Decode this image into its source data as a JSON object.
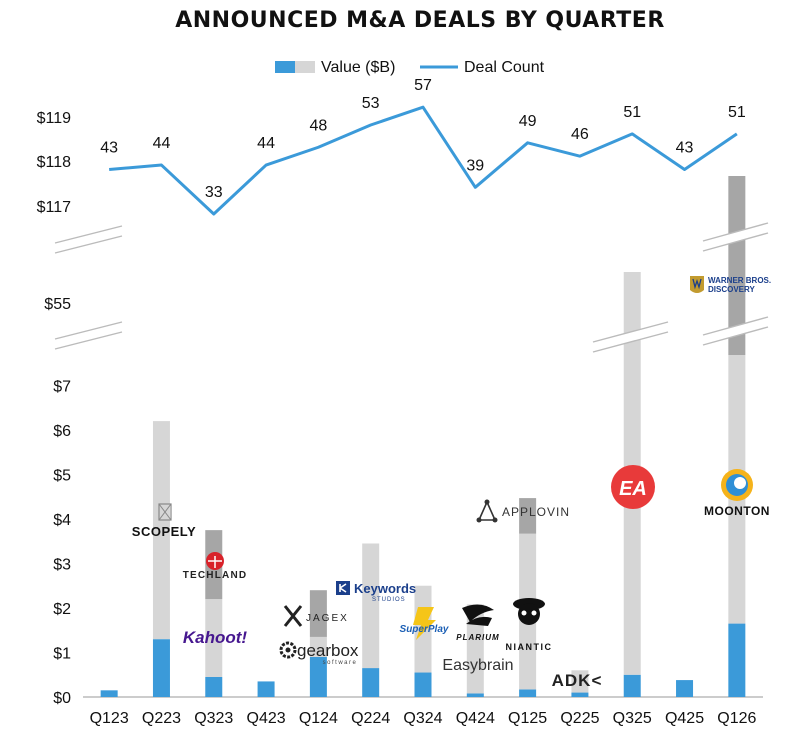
{
  "chart_data": {
    "type": "bar",
    "title": "ANNOUNCED M&A DEALS BY QUARTER",
    "legend": {
      "value_label": "Value ($B)",
      "count_label": "Deal Count",
      "placement": "top"
    },
    "categories": [
      "Q123",
      "Q223",
      "Q323",
      "Q423",
      "Q124",
      "Q224",
      "Q324",
      "Q424",
      "Q125",
      "Q225",
      "Q325",
      "Q425",
      "Q126"
    ],
    "y_ticks_lower": [
      "$0",
      "$1",
      "$2",
      "$3",
      "$4",
      "$5",
      "$6",
      "$7"
    ],
    "y_ticks_mid": [
      "$55"
    ],
    "y_ticks_upper": [
      "$117",
      "$118",
      "$119"
    ],
    "axis_break": true,
    "value_segments_billion": [
      [
        {
          "value": 0.15,
          "shade": "blue"
        }
      ],
      [
        {
          "value": 1.3,
          "shade": "blue"
        },
        {
          "value": 4.9,
          "shade": "light"
        }
      ],
      [
        {
          "value": 0.45,
          "shade": "blue"
        },
        {
          "value": 1.75,
          "shade": "light"
        },
        {
          "value": 1.55,
          "shade": "dark"
        }
      ],
      [
        {
          "value": 0.35,
          "shade": "blue"
        }
      ],
      [
        {
          "value": 0.9,
          "shade": "blue"
        },
        {
          "value": 0.45,
          "shade": "light"
        },
        {
          "value": 1.05,
          "shade": "dark"
        }
      ],
      [
        {
          "value": 0.65,
          "shade": "blue"
        },
        {
          "value": 2.8,
          "shade": "light"
        }
      ],
      [
        {
          "value": 0.55,
          "shade": "blue"
        },
        {
          "value": 1.95,
          "shade": "light"
        }
      ],
      [
        {
          "value": 0.08,
          "shade": "blue"
        },
        {
          "value": 2.0,
          "shade": "light"
        }
      ],
      [
        {
          "value": 0.17,
          "shade": "blue"
        },
        {
          "value": 3.5,
          "shade": "light"
        },
        {
          "value": 0.8,
          "shade": "dark"
        }
      ],
      [
        {
          "value": 0.1,
          "shade": "blue"
        },
        {
          "value": 0.5,
          "shade": "light"
        }
      ],
      [
        {
          "value": 0.5,
          "shade": "blue"
        },
        {
          "value": 55.0,
          "shade": "light"
        }
      ],
      [
        {
          "value": 0.38,
          "shade": "blue"
        }
      ],
      [
        {
          "value": 1.65,
          "shade": "blue"
        },
        {
          "value": 6.3,
          "shade": "light"
        },
        {
          "value": 110.0,
          "shade": "dark"
        }
      ]
    ],
    "deal_count": [
      43,
      44,
      33,
      44,
      48,
      53,
      57,
      39,
      49,
      46,
      51,
      43,
      51
    ],
    "colors": {
      "blue": "#3B9AD9",
      "light": "#D6D6D6",
      "dark": "#A6A6A6",
      "line": "#3B9AD9"
    },
    "logos": [
      {
        "text": "SCOPELY",
        "icon": "scopely-icon"
      },
      {
        "text": "TECHLAND",
        "icon": "techland-icon"
      },
      {
        "text": "Kahoot!",
        "icon": "kahoot-wordmark"
      },
      {
        "text": "JAGEX",
        "icon": "jagex-icon"
      },
      {
        "text": "gearbox",
        "sub": "software",
        "icon": "gearbox-icon"
      },
      {
        "text": "Keywords",
        "sub": "STUDIOS",
        "icon": "keywords-icon"
      },
      {
        "text": "SuperPlay",
        "icon": "superplay-icon"
      },
      {
        "text": "PLARIUM",
        "icon": "plarium-icon"
      },
      {
        "text": "Easybrain",
        "icon": "easybrain-wordmark"
      },
      {
        "text": "APPLOVIN",
        "icon": "applovin-icon"
      },
      {
        "text": "NIANTIC",
        "icon": "niantic-icon"
      },
      {
        "text": "ADK<",
        "icon": "adk-wordmark"
      },
      {
        "text": "EA",
        "icon": "ea-icon"
      },
      {
        "text": "WARNER BROS.",
        "sub": "DISCOVERY",
        "icon": "wbd-icon"
      },
      {
        "text": "MOONTON",
        "icon": "moonton-icon"
      }
    ]
  }
}
